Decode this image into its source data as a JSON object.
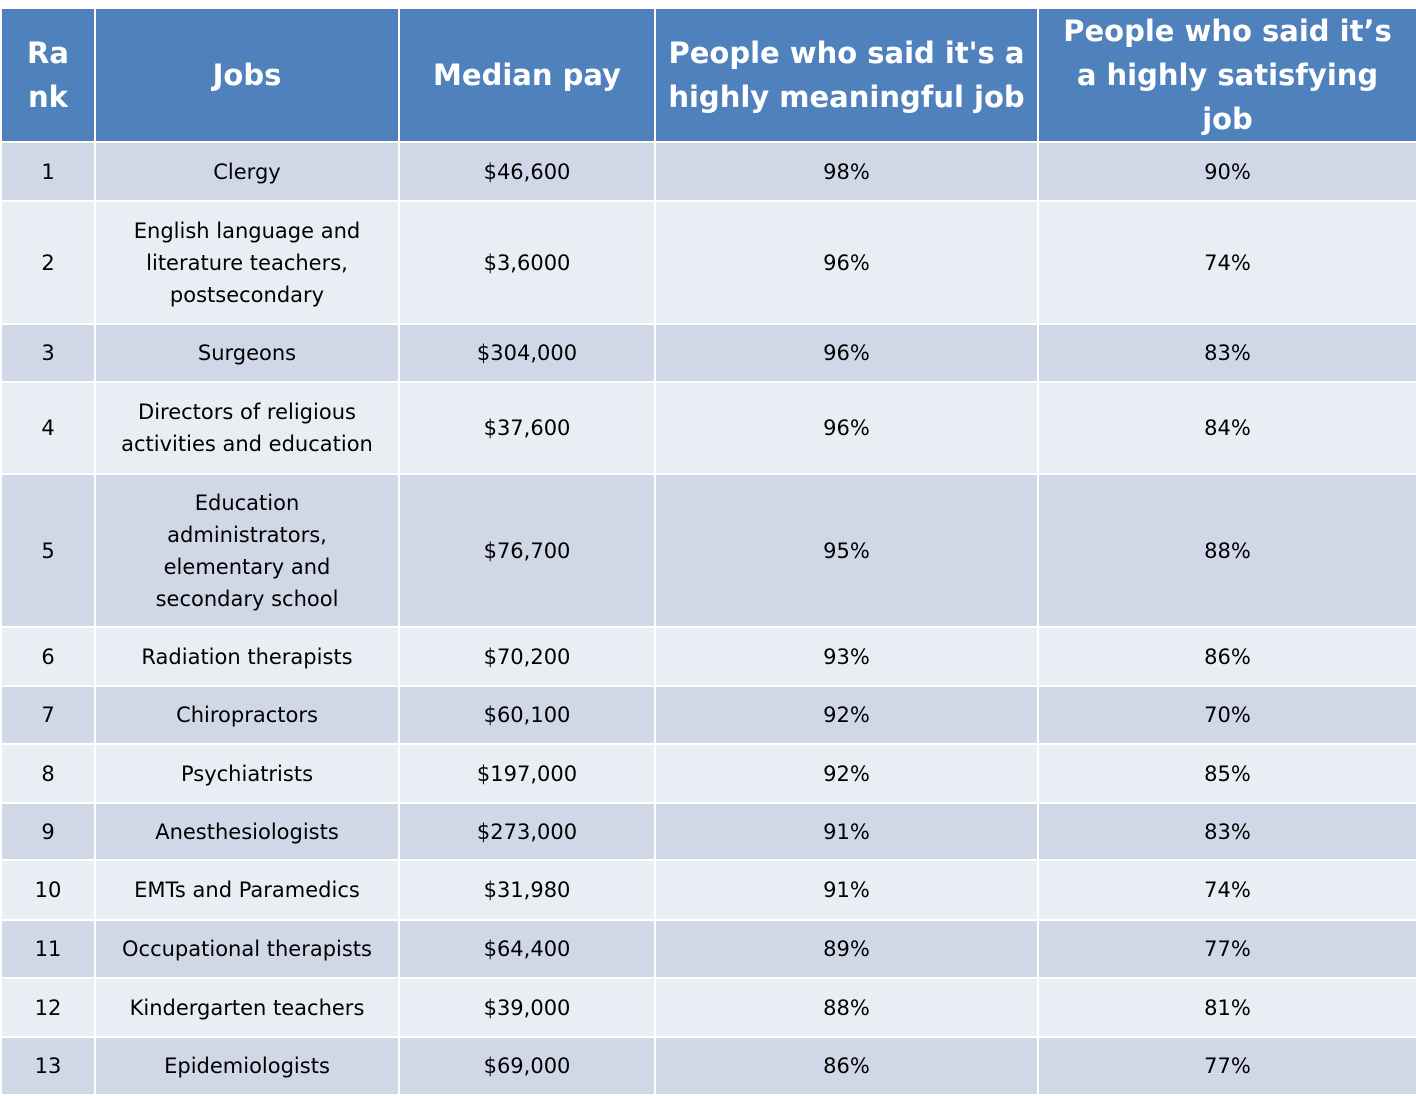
{
  "table": {
    "header": [
      "Rank",
      "Jobs",
      "Median pay",
      "People who said it's a highly meaningful job",
      "People who said it’s a highly satisfying job"
    ],
    "rows": [
      [
        "1",
        "Clergy",
        "$46,600",
        "98%",
        "90%"
      ],
      [
        "2",
        "English language and literature teachers, postsecondary",
        "$3,6000",
        "96%",
        "74%"
      ],
      [
        "3",
        "Surgeons",
        "$304,000",
        "96%",
        "83%"
      ],
      [
        "4",
        "Directors of religious activities and education",
        "$37,600",
        "96%",
        "84%"
      ],
      [
        "5",
        "Education administrators, elementary and secondary school",
        "$76,700",
        "95%",
        "88%"
      ],
      [
        "6",
        "Radiation therapists",
        "$70,200",
        "93%",
        "86%"
      ],
      [
        "7",
        "Chiropractors",
        "$60,100",
        "92%",
        "70%"
      ],
      [
        "8",
        "Psychiatrists",
        "$197,000",
        "92%",
        "85%"
      ],
      [
        "9",
        "Anesthesiologists",
        "$273,000",
        "91%",
        "83%"
      ],
      [
        "10",
        "EMTs and Paramedics",
        "$31,980",
        "91%",
        "74%"
      ],
      [
        "11",
        "Occupational therapists",
        "$64,400",
        "89%",
        "77%"
      ],
      [
        "12",
        "Kindergarten teachers",
        "$39,000",
        "88%",
        "81%"
      ],
      [
        "13",
        "Epidemiologists",
        "$69,000",
        "86%",
        "77%"
      ]
    ]
  }
}
